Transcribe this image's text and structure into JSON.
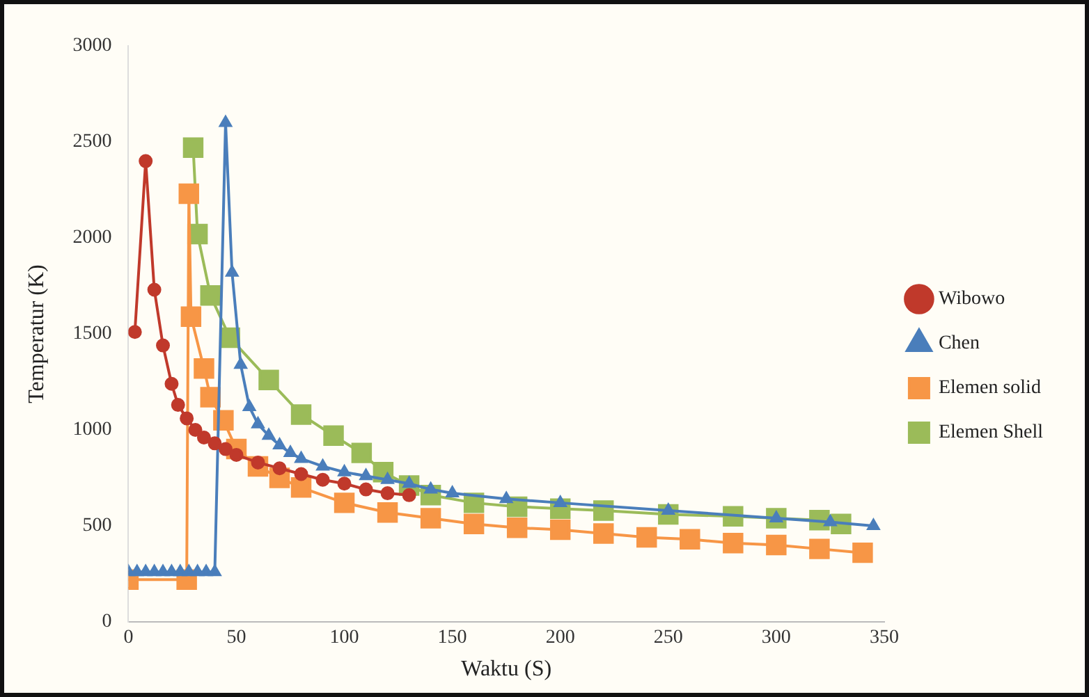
{
  "chart_data": {
    "type": "line",
    "xlabel": "Waktu (S)",
    "ylabel": "Temperatur (K)",
    "xlim": [
      0,
      350
    ],
    "xticks": [
      0,
      50,
      100,
      150,
      200,
      250,
      300,
      350
    ],
    "ylim": [
      0,
      3000
    ],
    "yticks": [
      0,
      500,
      1000,
      1500,
      2000,
      2500,
      3000
    ],
    "grid": false,
    "legend": "right",
    "series": [
      {
        "name": "Wibowo",
        "color": "#c0392b",
        "marker": "circle",
        "x": [
          3,
          8,
          12,
          16,
          20,
          23,
          27,
          31,
          35,
          40,
          45,
          50,
          60,
          70,
          80,
          90,
          100,
          110,
          120,
          130
        ],
        "values": [
          1510,
          2400,
          1730,
          1440,
          1240,
          1130,
          1060,
          1000,
          960,
          930,
          900,
          870,
          830,
          800,
          770,
          740,
          720,
          690,
          670,
          660
        ]
      },
      {
        "name": "Chen",
        "color": "#4a7ebb",
        "marker": "triangle",
        "x": [
          0,
          4,
          8,
          12,
          16,
          20,
          24,
          28,
          32,
          36,
          40,
          45,
          48,
          52,
          56,
          60,
          65,
          70,
          75,
          80,
          90,
          100,
          110,
          120,
          130,
          140,
          150,
          175,
          200,
          250,
          300,
          325,
          345
        ],
        "values": [
          260,
          260,
          260,
          260,
          260,
          260,
          260,
          260,
          260,
          260,
          260,
          2600,
          1820,
          1340,
          1120,
          1030,
          970,
          920,
          880,
          850,
          810,
          780,
          760,
          740,
          720,
          690,
          670,
          640,
          620,
          580,
          540,
          520,
          500
        ]
      },
      {
        "name": "Elemen solid",
        "color": "#f79646",
        "marker": "square",
        "x": [
          0,
          27,
          28,
          29,
          35,
          38,
          44,
          50,
          60,
          70,
          80,
          100,
          120,
          140,
          160,
          180,
          200,
          220,
          240,
          260,
          280,
          300,
          320,
          340
        ],
        "values": [
          220,
          220,
          2230,
          1590,
          1320,
          1170,
          1050,
          900,
          810,
          750,
          700,
          620,
          570,
          540,
          510,
          490,
          480,
          460,
          440,
          430,
          410,
          400,
          380,
          360
        ]
      },
      {
        "name": "Elemen Shell",
        "color": "#9bbb59",
        "marker": "square",
        "x": [
          30,
          32,
          38,
          47,
          65,
          80,
          95,
          108,
          118,
          130,
          140,
          160,
          180,
          200,
          220,
          250,
          280,
          300,
          320,
          330
        ],
        "values": [
          2470,
          2020,
          1700,
          1480,
          1260,
          1080,
          970,
          880,
          780,
          710,
          660,
          620,
          600,
          590,
          580,
          560,
          550,
          540,
          530,
          510
        ]
      }
    ]
  }
}
